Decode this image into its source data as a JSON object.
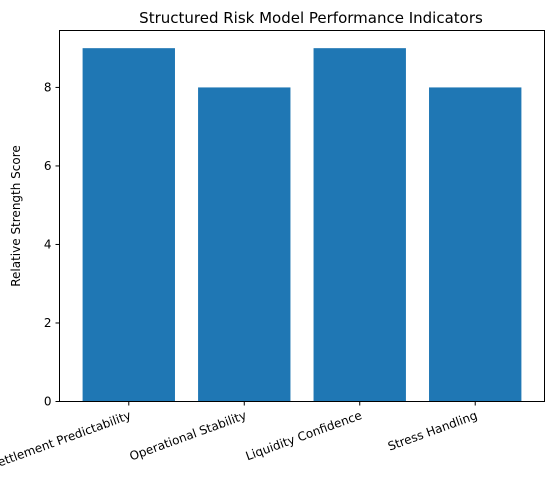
{
  "chart_data": {
    "type": "bar",
    "title": "Structured Risk Model Performance Indicators",
    "xlabel": "",
    "ylabel": "Relative Strength Score",
    "categories": [
      "Settlement Predictability",
      "Operational Stability",
      "Liquidity Confidence",
      "Stress Handling"
    ],
    "values": [
      9,
      8,
      9,
      8
    ],
    "ylim": [
      0,
      9.45
    ],
    "yticks": [
      0,
      2,
      4,
      6,
      8
    ],
    "bar_color": "#1f77b4",
    "grid": false,
    "legend": "none",
    "xtick_rotation_deg": 20
  }
}
